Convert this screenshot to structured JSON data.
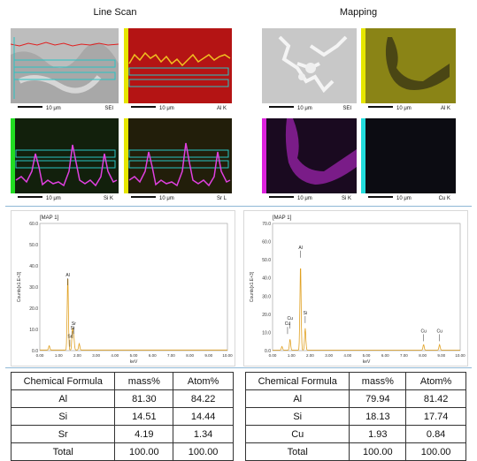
{
  "headers": {
    "line_scan": "Line Scan",
    "mapping": "Mapping"
  },
  "line_scan_panels": [
    {
      "label": "SEI",
      "scale": "10 μm",
      "tint": "#bfbfbf"
    },
    {
      "label": "Al K",
      "scale": "10 μm",
      "tint": "#b41414"
    },
    {
      "label": "Si K",
      "scale": "10 μm",
      "tint": "#12200c"
    },
    {
      "label": "Sr L",
      "scale": "10 μm",
      "tint": "#221e0a"
    }
  ],
  "mapping_panels": [
    {
      "label": "SEI",
      "scale": "10 μm",
      "tint": "#c4c4c4"
    },
    {
      "label": "Al K",
      "scale": "10 μm",
      "tint": "#8a8416"
    },
    {
      "label": "Si K",
      "scale": "10 μm",
      "tint": "#2a0a30"
    },
    {
      "label": "Cu K",
      "scale": "10 μm",
      "tint": "#0c0c12"
    }
  ],
  "spectra": [
    {
      "title": "[MAP 1]",
      "ylabel": "Counts[x1.E+3]",
      "xlabel": "keV",
      "yticks": [
        "60.0",
        "50.0",
        "40.0",
        "30.0",
        "20.0",
        "10.0",
        "0.0"
      ],
      "xticks": [
        "0.00",
        "1.00",
        "2.00",
        "3.00",
        "4.00",
        "5.00",
        "6.00",
        "7.00",
        "8.00",
        "9.00",
        "10.00"
      ],
      "peak_labels": [
        {
          "text": "Al",
          "kev": 1.49,
          "y": 35
        },
        {
          "text": "Sr",
          "kev": 1.81,
          "y": 12
        },
        {
          "text": "Si",
          "kev": 1.74,
          "y": 10
        },
        {
          "text": "Sr",
          "kev": 1.6,
          "y": 6
        }
      ],
      "chart_data": {
        "type": "line",
        "ylim": [
          0,
          60
        ],
        "xlim": [
          0,
          10
        ],
        "peaks": [
          {
            "kev": 0.5,
            "counts": 2
          },
          {
            "kev": 1.49,
            "counts": 35
          },
          {
            "kev": 1.74,
            "counts": 10
          },
          {
            "kev": 1.81,
            "counts": 6
          },
          {
            "kev": 2.1,
            "counts": 3
          }
        ]
      }
    },
    {
      "title": "[MAP 1]",
      "ylabel": "Counts[x1.E+3]",
      "xlabel": "keV",
      "yticks": [
        "70.0",
        "60.0",
        "50.0",
        "40.0",
        "30.0",
        "20.0",
        "10.0",
        "0.0"
      ],
      "xticks": [
        "0.00",
        "1.00",
        "2.00",
        "3.00",
        "4.00",
        "5.00",
        "6.00",
        "7.00",
        "8.00",
        "9.00",
        "10.00"
      ],
      "peak_labels": [
        {
          "text": "Al",
          "kev": 1.49,
          "y": 56
        },
        {
          "text": "Si",
          "kev": 1.74,
          "y": 20
        },
        {
          "text": "Cu",
          "kev": 0.93,
          "y": 17
        },
        {
          "text": "Cu",
          "kev": 0.8,
          "y": 14
        },
        {
          "text": "Cu",
          "kev": 8.05,
          "y": 10
        },
        {
          "text": "Cu",
          "kev": 8.9,
          "y": 10
        }
      ],
      "chart_data": {
        "type": "line",
        "ylim": [
          0,
          70
        ],
        "xlim": [
          0,
          10
        ],
        "peaks": [
          {
            "kev": 0.5,
            "counts": 2
          },
          {
            "kev": 0.93,
            "counts": 6
          },
          {
            "kev": 1.49,
            "counts": 47
          },
          {
            "kev": 1.74,
            "counts": 12
          },
          {
            "kev": 8.05,
            "counts": 3
          },
          {
            "kev": 8.9,
            "counts": 3
          }
        ]
      }
    }
  ],
  "tables": [
    {
      "headers": [
        "Chemical Formula",
        "mass%",
        "Atom%"
      ],
      "rows": [
        [
          "Al",
          "81.30",
          "84.22"
        ],
        [
          "Si",
          "14.51",
          "14.44"
        ],
        [
          "Sr",
          "4.19",
          "1.34"
        ],
        [
          "Total",
          "100.00",
          "100.00"
        ]
      ]
    },
    {
      "headers": [
        "Chemical Formula",
        "mass%",
        "Atom%"
      ],
      "rows": [
        [
          "Al",
          "79.94",
          "81.42"
        ],
        [
          "Si",
          "18.13",
          "17.74"
        ],
        [
          "Cu",
          "1.93",
          "0.84"
        ],
        [
          "Total",
          "100.00",
          "100.00"
        ]
      ]
    }
  ]
}
